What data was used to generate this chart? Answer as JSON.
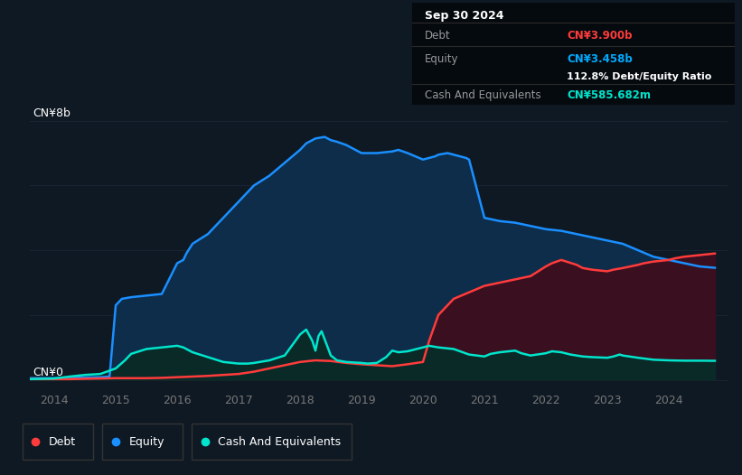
{
  "bg_color": "#0f1923",
  "plot_bg_color": "#0f1923",
  "title_box": {
    "date": "Sep 30 2024",
    "debt_label": "Debt",
    "debt_value": "CN¥3.900b",
    "equity_label": "Equity",
    "equity_value": "CN¥3.458b",
    "ratio_text": "112.8% Debt/Equity Ratio",
    "cash_label": "Cash And Equivalents",
    "cash_value": "CN¥585.682m",
    "debt_color": "#ff3b3b",
    "equity_color": "#00aaff",
    "cash_color": "#00e5cc",
    "text_color": "#999999",
    "bg_color": "#050a0f"
  },
  "ylabel_top": "CN¥8b",
  "ylabel_bottom": "CN¥0",
  "xlim": [
    2013.6,
    2024.95
  ],
  "ylim": [
    -0.3,
    8.5
  ],
  "debt_color": "#ff3b3b",
  "equity_color": "#1a8fff",
  "cash_color": "#00e5cc",
  "equity_fill_color": "#0d2d4a",
  "debt_fill_color": "#3a0f1f",
  "cash_fill_color": "#0a2a28",
  "grid_color": "#1a2535",
  "tick_color": "#777777",
  "years": [
    2014,
    2015,
    2016,
    2017,
    2018,
    2019,
    2020,
    2021,
    2022,
    2023,
    2024
  ],
  "equity_data": {
    "x": [
      2013.6,
      2013.75,
      2014.0,
      2014.25,
      2014.5,
      2014.75,
      2014.9,
      2015.0,
      2015.05,
      2015.1,
      2015.25,
      2015.5,
      2015.75,
      2016.0,
      2016.1,
      2016.15,
      2016.25,
      2016.5,
      2016.75,
      2017.0,
      2017.25,
      2017.5,
      2017.75,
      2018.0,
      2018.1,
      2018.25,
      2018.4,
      2018.5,
      2018.6,
      2018.75,
      2019.0,
      2019.25,
      2019.5,
      2019.6,
      2019.75,
      2020.0,
      2020.1,
      2020.2,
      2020.25,
      2020.4,
      2020.5,
      2020.6,
      2020.7,
      2020.75,
      2021.0,
      2021.25,
      2021.5,
      2021.75,
      2022.0,
      2022.25,
      2022.5,
      2022.75,
      2023.0,
      2023.25,
      2023.5,
      2023.75,
      2024.0,
      2024.25,
      2024.5,
      2024.75
    ],
    "y": [
      0.05,
      0.05,
      0.05,
      0.06,
      0.07,
      0.08,
      0.1,
      2.3,
      2.4,
      2.5,
      2.55,
      2.6,
      2.65,
      3.6,
      3.7,
      3.9,
      4.2,
      4.5,
      5.0,
      5.5,
      6.0,
      6.3,
      6.7,
      7.1,
      7.3,
      7.45,
      7.5,
      7.4,
      7.35,
      7.25,
      7.0,
      7.0,
      7.05,
      7.1,
      7.0,
      6.8,
      6.85,
      6.9,
      6.95,
      7.0,
      6.95,
      6.9,
      6.85,
      6.8,
      5.0,
      4.9,
      4.85,
      4.75,
      4.65,
      4.6,
      4.5,
      4.4,
      4.3,
      4.2,
      4.0,
      3.8,
      3.7,
      3.6,
      3.5,
      3.458
    ]
  },
  "debt_data": {
    "x": [
      2013.6,
      2014.0,
      2014.25,
      2014.5,
      2014.75,
      2015.0,
      2015.25,
      2015.5,
      2015.75,
      2016.0,
      2016.25,
      2016.5,
      2016.75,
      2017.0,
      2017.25,
      2017.5,
      2017.75,
      2018.0,
      2018.25,
      2018.5,
      2018.75,
      2019.0,
      2019.25,
      2019.5,
      2019.75,
      2020.0,
      2020.1,
      2020.25,
      2020.5,
      2020.75,
      2021.0,
      2021.25,
      2021.5,
      2021.75,
      2022.0,
      2022.1,
      2022.25,
      2022.5,
      2022.6,
      2022.75,
      2023.0,
      2023.1,
      2023.25,
      2023.5,
      2023.6,
      2023.75,
      2024.0,
      2024.1,
      2024.25,
      2024.5,
      2024.75
    ],
    "y": [
      0.02,
      0.02,
      0.02,
      0.03,
      0.04,
      0.05,
      0.05,
      0.05,
      0.06,
      0.08,
      0.1,
      0.12,
      0.15,
      0.18,
      0.25,
      0.35,
      0.45,
      0.55,
      0.6,
      0.58,
      0.52,
      0.48,
      0.45,
      0.42,
      0.48,
      0.55,
      1.2,
      2.0,
      2.5,
      2.7,
      2.9,
      3.0,
      3.1,
      3.2,
      3.5,
      3.6,
      3.7,
      3.55,
      3.45,
      3.4,
      3.35,
      3.4,
      3.45,
      3.55,
      3.6,
      3.65,
      3.7,
      3.75,
      3.8,
      3.85,
      3.9
    ]
  },
  "cash_data": {
    "x": [
      2013.6,
      2014.0,
      2014.25,
      2014.5,
      2014.75,
      2015.0,
      2015.15,
      2015.25,
      2015.5,
      2015.75,
      2016.0,
      2016.1,
      2016.25,
      2016.5,
      2016.75,
      2017.0,
      2017.15,
      2017.25,
      2017.5,
      2017.75,
      2018.0,
      2018.1,
      2018.2,
      2018.25,
      2018.3,
      2018.35,
      2018.5,
      2018.6,
      2018.75,
      2019.0,
      2019.1,
      2019.25,
      2019.4,
      2019.5,
      2019.6,
      2019.75,
      2020.0,
      2020.1,
      2020.25,
      2020.5,
      2020.75,
      2021.0,
      2021.1,
      2021.25,
      2021.5,
      2021.6,
      2021.75,
      2022.0,
      2022.1,
      2022.25,
      2022.4,
      2022.5,
      2022.6,
      2022.75,
      2023.0,
      2023.1,
      2023.2,
      2023.25,
      2023.5,
      2023.75,
      2024.0,
      2024.25,
      2024.5,
      2024.75
    ],
    "y": [
      0.02,
      0.04,
      0.1,
      0.15,
      0.18,
      0.35,
      0.6,
      0.8,
      0.95,
      1.0,
      1.05,
      1.0,
      0.85,
      0.7,
      0.55,
      0.5,
      0.5,
      0.52,
      0.6,
      0.75,
      1.4,
      1.55,
      1.2,
      0.9,
      1.35,
      1.5,
      0.75,
      0.6,
      0.55,
      0.52,
      0.5,
      0.52,
      0.7,
      0.9,
      0.85,
      0.88,
      1.0,
      1.05,
      1.0,
      0.95,
      0.78,
      0.72,
      0.8,
      0.85,
      0.9,
      0.82,
      0.75,
      0.82,
      0.88,
      0.85,
      0.78,
      0.75,
      0.72,
      0.7,
      0.68,
      0.72,
      0.78,
      0.75,
      0.68,
      0.62,
      0.6,
      0.59,
      0.59,
      0.586
    ]
  },
  "legend_items": [
    {
      "label": "Debt",
      "color": "#ff3b3b"
    },
    {
      "label": "Equity",
      "color": "#1a8fff"
    },
    {
      "label": "Cash And Equivalents",
      "color": "#00e5cc"
    }
  ]
}
